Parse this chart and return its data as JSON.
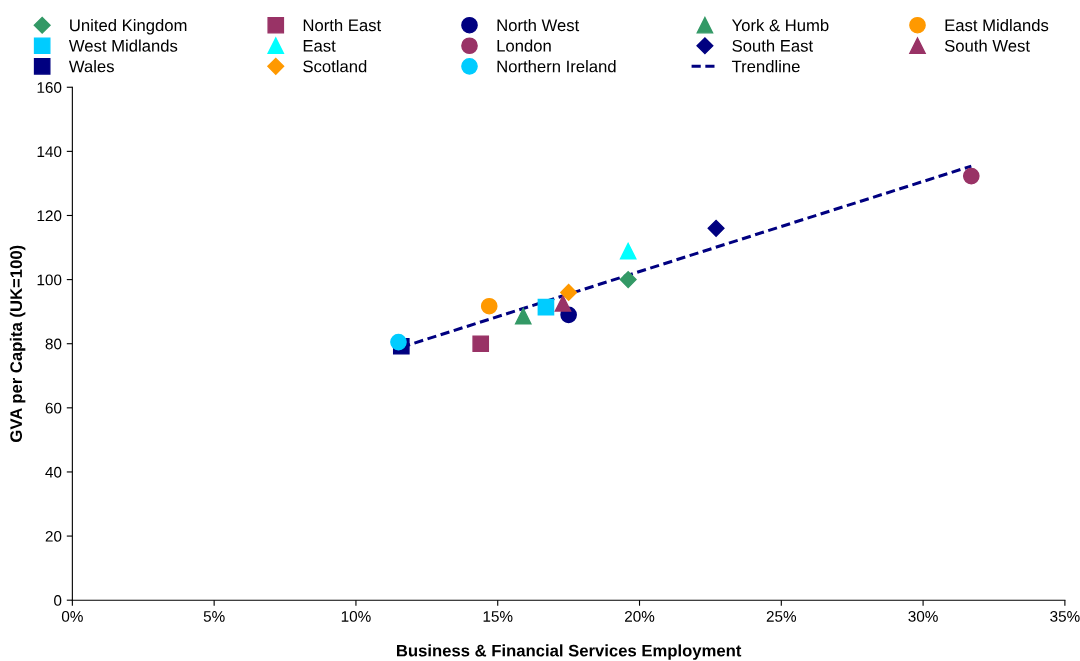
{
  "chart_data": {
    "type": "scatter",
    "xlabel": "Business & Financial Services Employment",
    "ylabel": "GVA per Capita (UK=100)",
    "xlim": [
      0,
      35
    ],
    "xticks": [
      {
        "value": 0,
        "label": "0%"
      },
      {
        "value": 5,
        "label": "5%"
      },
      {
        "value": 10,
        "label": "10%"
      },
      {
        "value": 15,
        "label": "15%"
      },
      {
        "value": 20,
        "label": "20%"
      },
      {
        "value": 25,
        "label": "25%"
      },
      {
        "value": 30,
        "label": "30%"
      },
      {
        "value": 35,
        "label": "35%"
      }
    ],
    "ylim": [
      0,
      160
    ],
    "yticks": [
      0,
      20,
      40,
      60,
      80,
      100,
      120,
      140,
      160
    ],
    "grid": false,
    "legend": "top",
    "series": [
      {
        "name": "United Kingdom",
        "color": "#339966",
        "marker": "diamond",
        "x": [
          19.6
        ],
        "values": [
          100
        ]
      },
      {
        "name": "North East",
        "color": "#993366",
        "marker": "square",
        "x": [
          14.4
        ],
        "values": [
          80
        ]
      },
      {
        "name": "North West",
        "color": "#000080",
        "marker": "circle",
        "x": [
          17.5
        ],
        "values": [
          89
        ]
      },
      {
        "name": "York & Humb",
        "color": "#339966",
        "marker": "triangle",
        "x": [
          15.9
        ],
        "values": [
          88.6
        ]
      },
      {
        "name": "East Midlands",
        "color": "#ff9900",
        "marker": "circle",
        "x": [
          14.7
        ],
        "values": [
          91.7
        ]
      },
      {
        "name": "West Midlands",
        "color": "#00ccff",
        "marker": "square",
        "x": [
          16.7
        ],
        "values": [
          91.4
        ]
      },
      {
        "name": "East",
        "color": "#00ffff",
        "marker": "triangle",
        "x": [
          19.6
        ],
        "values": [
          108.9
        ]
      },
      {
        "name": "London",
        "color": "#993366",
        "marker": "circle",
        "x": [
          31.7
        ],
        "values": [
          132.3
        ]
      },
      {
        "name": "South East",
        "color": "#000080",
        "marker": "diamond",
        "x": [
          22.7
        ],
        "values": [
          116
        ]
      },
      {
        "name": "South West",
        "color": "#993366",
        "marker": "triangle",
        "x": [
          17.3
        ],
        "values": [
          92.6
        ]
      },
      {
        "name": "Wales",
        "color": "#000080",
        "marker": "square",
        "x": [
          11.6
        ],
        "values": [
          79.2
        ]
      },
      {
        "name": "Scotland",
        "color": "#ff9900",
        "marker": "diamond",
        "x": [
          17.5
        ],
        "values": [
          96
        ]
      },
      {
        "name": "Northern Ireland",
        "color": "#00ccff",
        "marker": "circle",
        "x": [
          11.5
        ],
        "values": [
          80.5
        ]
      },
      {
        "name": "Trendline",
        "type": "line",
        "color": "#000080",
        "marker": "none",
        "line_style": "dashed",
        "x": [
          11.6,
          31.7
        ],
        "values": [
          78.9,
          135.4
        ]
      }
    ]
  }
}
